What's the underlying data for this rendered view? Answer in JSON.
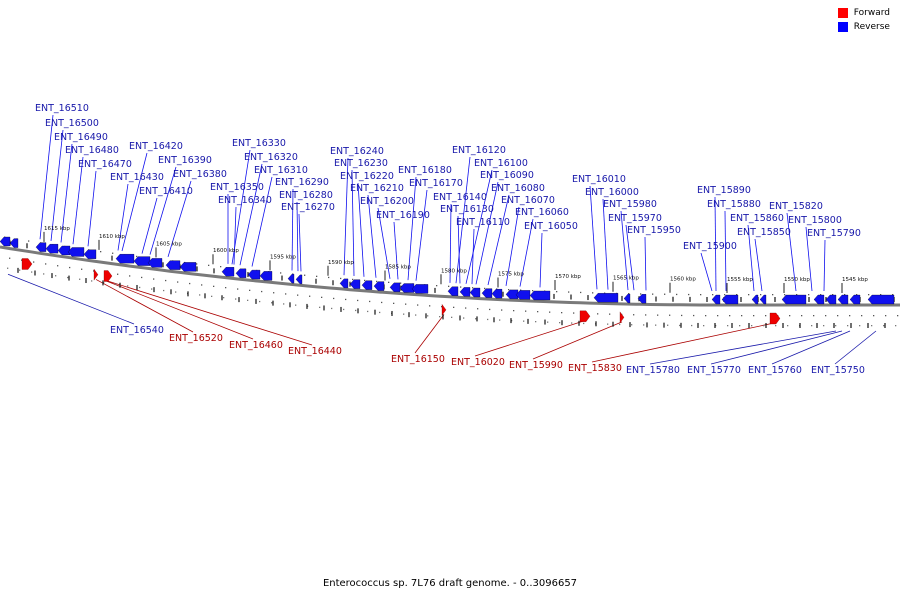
{
  "caption": "Enterococcus sp. 7L76 draft genome. - 0..3096657",
  "legend": [
    {
      "label": "Forward",
      "color": "#ff0000"
    },
    {
      "label": "Reverse",
      "color": "#0000ff"
    }
  ],
  "colors": {
    "forward": "#ee0000",
    "reverse": "#1010ee",
    "forward_label": "#aa0000",
    "reverse_label": "#1818aa",
    "backbone": "#7a7a7a"
  },
  "ticks": [
    "1615 kbp",
    "1610 kbp",
    "1605 kbp",
    "1600 kbp",
    "1595 kbp",
    "1590 kbp",
    "1585 kbp",
    "1580 kbp",
    "1575 kbp",
    "1570 kbp",
    "1565 kbp",
    "1560 kbp",
    "1555 kbp",
    "1550 kbp",
    "1545 kbp"
  ],
  "top_labels": [
    "ENT_16510",
    "ENT_16500",
    "ENT_16490",
    "ENT_16480",
    "ENT_16470",
    "ENT_16420",
    "ENT_16430",
    "ENT_16390",
    "ENT_16410",
    "ENT_16380",
    "ENT_16330",
    "ENT_16320",
    "ENT_16310",
    "ENT_16350",
    "ENT_16340",
    "ENT_16290",
    "ENT_16280",
    "ENT_16270",
    "ENT_16240",
    "ENT_16230",
    "ENT_16220",
    "ENT_16210",
    "ENT_16200",
    "ENT_16180",
    "ENT_16170",
    "ENT_16190",
    "ENT_16120",
    "ENT_16100",
    "ENT_16090",
    "ENT_16080",
    "ENT_16140",
    "ENT_16070",
    "ENT_16130",
    "ENT_16060",
    "ENT_16110",
    "ENT_16050",
    "ENT_16010",
    "ENT_16000",
    "ENT_15980",
    "ENT_15970",
    "ENT_15950",
    "ENT_15890",
    "ENT_15880",
    "ENT_15860",
    "ENT_15850",
    "ENT_15900",
    "ENT_15820",
    "ENT_15800",
    "ENT_15790"
  ],
  "bottom_labels": [
    {
      "text": "ENT_16540",
      "strand": "reverse"
    },
    {
      "text": "ENT_16520",
      "strand": "forward"
    },
    {
      "text": "ENT_16460",
      "strand": "forward"
    },
    {
      "text": "ENT_16440",
      "strand": "forward"
    },
    {
      "text": "ENT_16150",
      "strand": "forward"
    },
    {
      "text": "ENT_16020",
      "strand": "forward"
    },
    {
      "text": "ENT_15990",
      "strand": "forward"
    },
    {
      "text": "ENT_15830",
      "strand": "forward"
    },
    {
      "text": "ENT_15780",
      "strand": "reverse"
    },
    {
      "text": "ENT_15770",
      "strand": "reverse"
    },
    {
      "text": "ENT_15760",
      "strand": "reverse"
    },
    {
      "text": "ENT_15750",
      "strand": "reverse"
    }
  ]
}
